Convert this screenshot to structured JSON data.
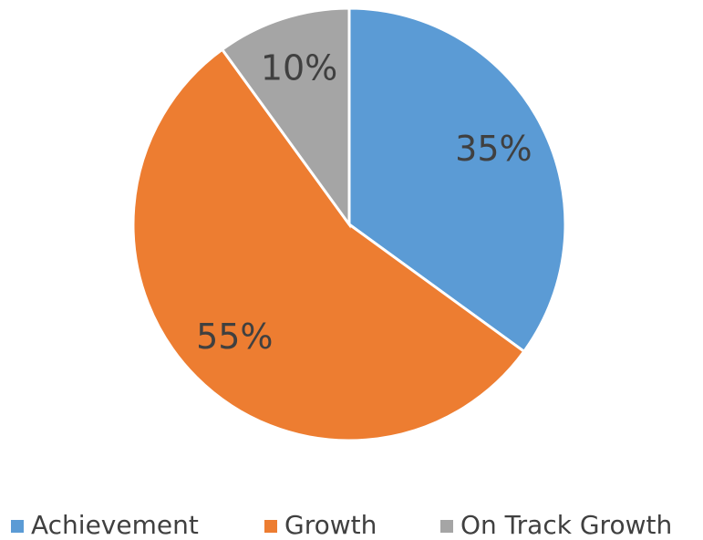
{
  "chart_data": {
    "type": "pie",
    "categories": [
      "Achievement",
      "Growth",
      "On Track Growth"
    ],
    "values": [
      35,
      55,
      10
    ],
    "value_labels": [
      "35%",
      "55%",
      "10%"
    ],
    "colors": [
      "#5b9bd5",
      "#ed7d31",
      "#a5a5a5"
    ],
    "legend": "bottom"
  }
}
